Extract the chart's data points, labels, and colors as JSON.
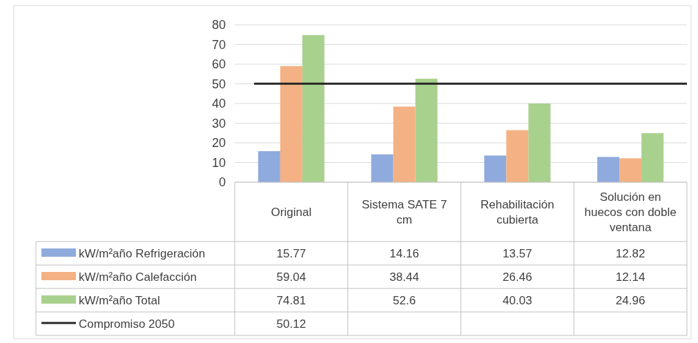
{
  "chart_data": {
    "type": "bar",
    "categories": [
      "Original",
      "Sistema SATE 7 cm",
      "Rehabilitación cubierta",
      "Solución en huecos con doble ventana"
    ],
    "series": [
      {
        "name": "kW/m²año Refrigeración",
        "color": "#8faadc",
        "values": [
          15.77,
          14.16,
          13.57,
          12.82
        ]
      },
      {
        "name": "kW/m²año Calefacción",
        "color": "#f4b183",
        "values": [
          59.04,
          38.44,
          26.46,
          12.14
        ]
      },
      {
        "name": "kW/m²año Total",
        "color": "#a9d18e",
        "values": [
          74.81,
          52.6,
          40.03,
          24.96
        ]
      }
    ],
    "ref_lines": [
      {
        "axis": "y",
        "value": 50.12,
        "label": "Compromiso 2050",
        "color": "#262626"
      }
    ],
    "ylim": [
      0,
      80
    ],
    "yticks": [
      0,
      10,
      20,
      30,
      40,
      50,
      60,
      70,
      80
    ],
    "annotations": [
      "50.12"
    ],
    "grid": "y",
    "legend": "left",
    "data_labels": true
  }
}
